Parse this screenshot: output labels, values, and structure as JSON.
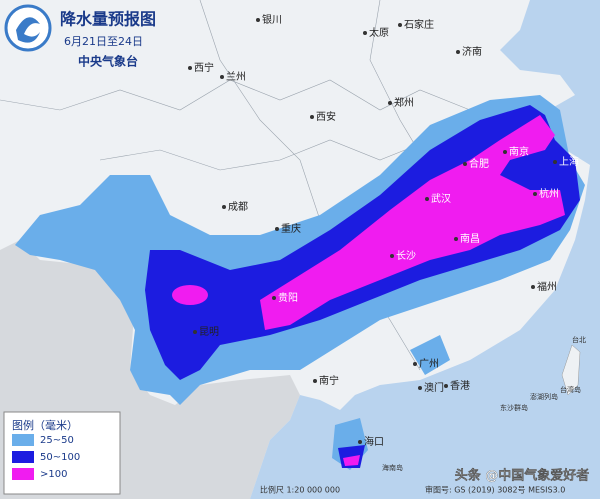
{
  "header": {
    "title": "降水量预报图",
    "date": "6月21日至24日",
    "agency": "中央气象台"
  },
  "legend": {
    "title": "图例（毫米）",
    "items": [
      {
        "label": "25~50",
        "color": "#6aaeea"
      },
      {
        "label": "50~100",
        "color": "#1c1ce0"
      },
      {
        "label": ">100",
        "color": "#f01cf0"
      }
    ]
  },
  "cities": [
    "银川",
    "太原",
    "石家庄",
    "西宁",
    "兰州",
    "济南",
    "西安",
    "郑州",
    "成都",
    "合肥",
    "南京",
    "上海",
    "武汉",
    "杭州",
    "重庆",
    "长沙",
    "南昌",
    "贵阳",
    "昆明",
    "福州",
    "南宁",
    "广州",
    "澳门",
    "香港",
    "海口"
  ],
  "islands": [
    "台北",
    "台湾岛",
    "澎湖列岛",
    "东沙群岛",
    "海南岛"
  ],
  "footer": {
    "scale": "比例尺 1:20 000 000",
    "approval": "审图号: GS (2019) 3082号 MESIS3.0"
  },
  "watermark": "头条 @中国气象爱好者"
}
